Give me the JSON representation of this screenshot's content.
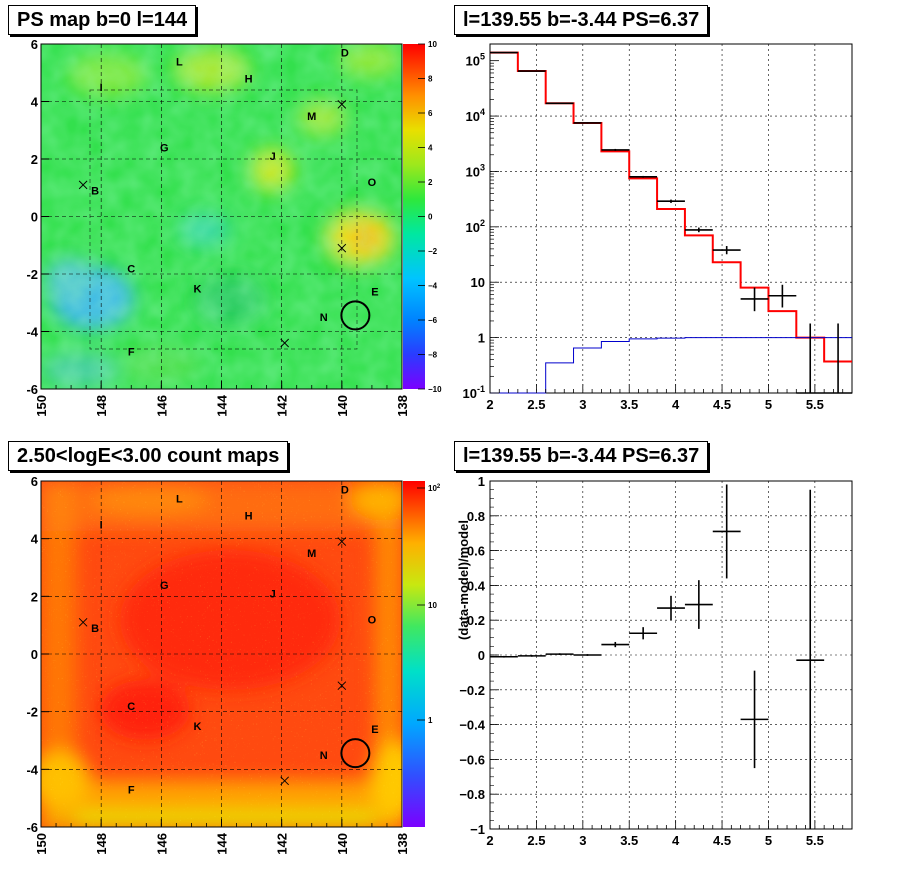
{
  "chart_data": [
    {
      "type": "heatmap",
      "title": "PS map b=0 l=144",
      "x_ticks": [
        "150",
        "148",
        "146",
        "144",
        "142",
        "140",
        "138"
      ],
      "y_ticks": [
        "6",
        "4",
        "2",
        "0",
        "-2",
        "-4",
        "-6"
      ],
      "colorbar_ticks": [
        "10",
        "8",
        "6",
        "4",
        "2",
        "0",
        "−2",
        "−4",
        "−6",
        "−8",
        "−10"
      ],
      "xlim": [
        150,
        138
      ],
      "ylim": [
        -6,
        6
      ],
      "zlim": [
        -10,
        10
      ],
      "sources": [
        {
          "name": "L",
          "l": 145.4,
          "b": 5.4
        },
        {
          "name": "H",
          "l": 143.1,
          "b": 4.8
        },
        {
          "name": "D",
          "l": 139.9,
          "b": 5.7
        },
        {
          "name": "I",
          "l": 148.0,
          "b": 4.5
        },
        {
          "name": "M",
          "l": 141.0,
          "b": 3.5
        },
        {
          "name": "G",
          "l": 145.9,
          "b": 2.4
        },
        {
          "name": "J",
          "l": 142.3,
          "b": 2.1
        },
        {
          "name": "O",
          "l": 139.0,
          "b": 1.2
        },
        {
          "name": "B",
          "l": 148.2,
          "b": 0.9
        },
        {
          "name": "C",
          "l": 147.0,
          "b": -1.8
        },
        {
          "name": "K",
          "l": 144.8,
          "b": -2.5
        },
        {
          "name": "E",
          "l": 138.9,
          "b": -2.6
        },
        {
          "name": "N",
          "l": 140.6,
          "b": -3.5
        },
        {
          "name": "F",
          "l": 147.0,
          "b": -4.7
        }
      ],
      "crosses": [
        {
          "l": 148.6,
          "b": 1.1
        },
        {
          "l": 140.0,
          "b": 3.9
        },
        {
          "l": 140.0,
          "b": -1.1
        },
        {
          "l": 141.9,
          "b": -4.4
        }
      ],
      "circle": {
        "l": 139.55,
        "b": -3.44
      },
      "colors": {
        "background": "#33e04d"
      }
    },
    {
      "type": "line",
      "title": "l=139.55 b=-3.44 PS=6.37",
      "x_ticks": [
        "2",
        "2.5",
        "3",
        "3.5",
        "4",
        "4.5",
        "5",
        "5.5"
      ],
      "y_ticks": [
        "10^5",
        "10^4",
        "10^3",
        "10^2",
        "10",
        "1",
        "10^-1"
      ],
      "xlim": [
        2,
        5.9
      ],
      "ylim": [
        0.1,
        200000
      ],
      "yscale": "log",
      "series": [
        {
          "color": "#ff0000",
          "edges": [
            2.0,
            2.3,
            2.6,
            2.9,
            3.2,
            3.5,
            3.8,
            4.1,
            4.4,
            4.7,
            5.0,
            5.3,
            5.6,
            5.9
          ],
          "values": [
            140000,
            65000,
            17000,
            7500,
            2300,
            750,
            210,
            70,
            23,
            8,
            3,
            1,
            0.37
          ]
        },
        {
          "color": "#0000cc",
          "edges": [
            2.0,
            2.3,
            2.6,
            2.9,
            3.2,
            3.5,
            3.8,
            4.1,
            4.4,
            4.7,
            5.0,
            5.3,
            5.6,
            5.9
          ],
          "values": [
            0.05,
            0.05,
            0.35,
            0.65,
            0.85,
            0.95,
            0.98,
            1,
            1,
            1,
            1,
            1,
            1
          ]
        },
        {
          "color": "#000000",
          "points": [
            {
              "x": 2.15,
              "y": 140000,
              "xe": 0.15,
              "lo": 139000,
              "hi": 141000
            },
            {
              "x": 2.45,
              "y": 65000,
              "xe": 0.15,
              "lo": 64000,
              "hi": 66000
            },
            {
              "x": 2.75,
              "y": 17000,
              "xe": 0.15,
              "lo": 16700,
              "hi": 17300
            },
            {
              "x": 3.05,
              "y": 7500,
              "xe": 0.15,
              "lo": 7300,
              "hi": 7700
            },
            {
              "x": 3.35,
              "y": 2450,
              "xe": 0.15,
              "lo": 2350,
              "hi": 2550
            },
            {
              "x": 3.65,
              "y": 800,
              "xe": 0.15,
              "lo": 770,
              "hi": 830
            },
            {
              "x": 3.95,
              "y": 290,
              "xe": 0.15,
              "lo": 270,
              "hi": 310
            },
            {
              "x": 4.25,
              "y": 88,
              "xe": 0.15,
              "lo": 80,
              "hi": 97
            },
            {
              "x": 4.55,
              "y": 38,
              "xe": 0.15,
              "lo": 32,
              "hi": 45
            },
            {
              "x": 4.85,
              "y": 5,
              "xe": 0.15,
              "lo": 3,
              "hi": 8
            },
            {
              "x": 5.15,
              "y": 5.7,
              "xe": 0.15,
              "lo": 3.5,
              "hi": 9
            },
            {
              "x": 5.45,
              "y": 0.1,
              "xe": 0.15,
              "lo": 0.1,
              "hi": 1.8
            },
            {
              "x": 5.75,
              "y": 0.1,
              "xe": 0.15,
              "lo": 0.1,
              "hi": 1.8
            }
          ]
        }
      ]
    },
    {
      "type": "heatmap",
      "title": "2.50<logE<3.00 count maps",
      "x_ticks": [
        "150",
        "148",
        "146",
        "144",
        "142",
        "140",
        "138"
      ],
      "y_ticks": [
        "6",
        "4",
        "2",
        "0",
        "-2",
        "-4",
        "-6"
      ],
      "colorbar_ticks": [
        "10^2",
        "10",
        "1"
      ],
      "xlim": [
        150,
        138
      ],
      "ylim": [
        -6,
        6
      ],
      "sources": [
        {
          "name": "L",
          "l": 145.4,
          "b": 5.4
        },
        {
          "name": "H",
          "l": 143.1,
          "b": 4.8
        },
        {
          "name": "D",
          "l": 139.9,
          "b": 5.7
        },
        {
          "name": "I",
          "l": 148.0,
          "b": 4.5
        },
        {
          "name": "M",
          "l": 141.0,
          "b": 3.5
        },
        {
          "name": "G",
          "l": 145.9,
          "b": 2.4
        },
        {
          "name": "J",
          "l": 142.3,
          "b": 2.1
        },
        {
          "name": "O",
          "l": 139.0,
          "b": 1.2
        },
        {
          "name": "B",
          "l": 148.2,
          "b": 0.9
        },
        {
          "name": "C",
          "l": 147.0,
          "b": -1.8
        },
        {
          "name": "K",
          "l": 144.8,
          "b": -2.5
        },
        {
          "name": "E",
          "l": 138.9,
          "b": -2.6
        },
        {
          "name": "N",
          "l": 140.6,
          "b": -3.5
        },
        {
          "name": "F",
          "l": 147.0,
          "b": -4.7
        }
      ],
      "crosses": [
        {
          "l": 148.6,
          "b": 1.1
        },
        {
          "l": 140.0,
          "b": 3.9
        },
        {
          "l": 140.0,
          "b": -1.1
        },
        {
          "l": 141.9,
          "b": -4.4
        }
      ],
      "circle": {
        "l": 139.55,
        "b": -3.44
      },
      "colors": {
        "background": "#ff4a10"
      }
    },
    {
      "type": "scatter",
      "title": "l=139.55 b=-3.44 PS=6.37",
      "ylabel": "(data-model)/model",
      "x_ticks": [
        "2",
        "2.5",
        "3",
        "3.5",
        "4",
        "4.5",
        "5",
        "5.5"
      ],
      "y_ticks": [
        "1",
        "0.8",
        "0.6",
        "0.4",
        "0.2",
        "0",
        "−0.2",
        "−0.4",
        "−0.6",
        "−0.8",
        "−1"
      ],
      "xlim": [
        2,
        5.9
      ],
      "ylim": [
        -1,
        1
      ],
      "points": [
        {
          "x": 2.15,
          "y": -0.01,
          "xe": 0.15,
          "ye": 0.005
        },
        {
          "x": 2.45,
          "y": -0.005,
          "xe": 0.15,
          "ye": 0.005
        },
        {
          "x": 2.75,
          "y": 0.005,
          "xe": 0.15,
          "ye": 0.005
        },
        {
          "x": 3.05,
          "y": 0.0,
          "xe": 0.15,
          "ye": 0.005
        },
        {
          "x": 3.35,
          "y": 0.06,
          "xe": 0.15,
          "ye": 0.015
        },
        {
          "x": 3.65,
          "y": 0.125,
          "xe": 0.15,
          "ye": 0.035
        },
        {
          "x": 3.95,
          "y": 0.27,
          "xe": 0.15,
          "ye": 0.07
        },
        {
          "x": 4.25,
          "y": 0.29,
          "xe": 0.15,
          "ye": 0.14
        },
        {
          "x": 4.55,
          "y": 0.71,
          "xe": 0.15,
          "ye": 0.27
        },
        {
          "x": 4.85,
          "y": -0.37,
          "xe": 0.15,
          "ye": 0.28
        },
        {
          "x": 5.45,
          "y": -0.03,
          "xe": 0.15,
          "ye": 0.98
        }
      ]
    }
  ]
}
